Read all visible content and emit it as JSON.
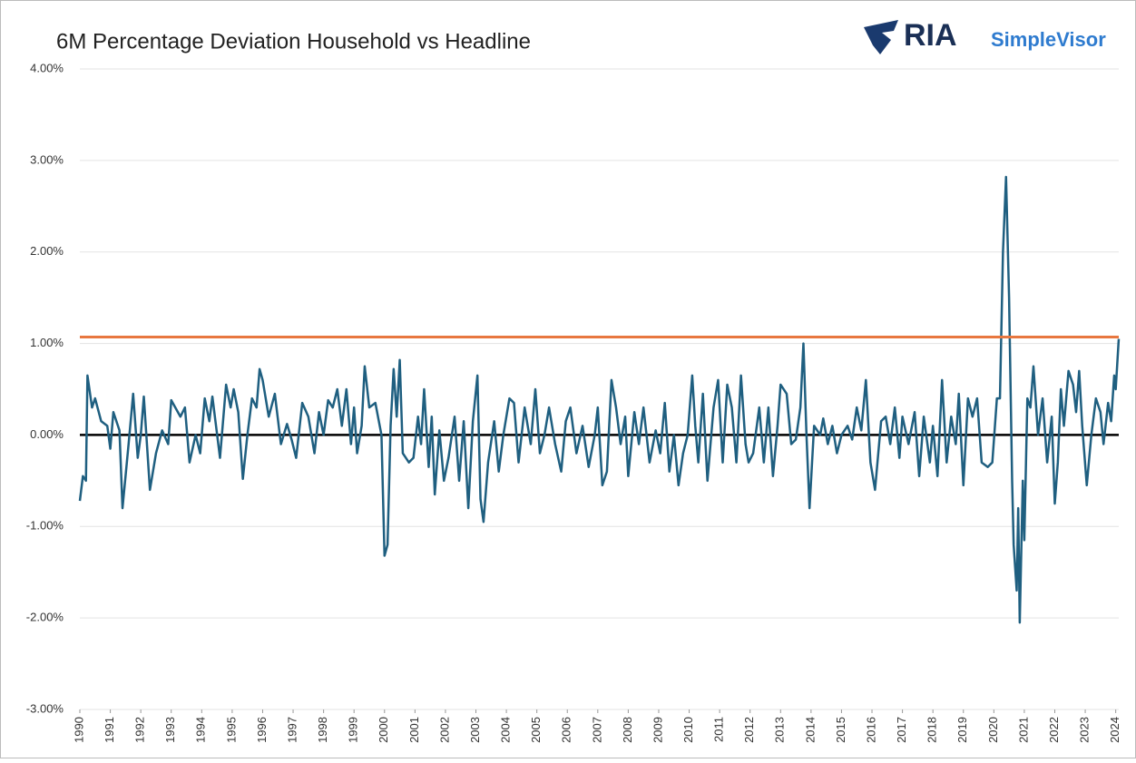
{
  "chart_data": {
    "type": "line",
    "title": "6M Percentage Deviation Household vs Headline",
    "brand": "RIA",
    "brand_sub": "SimpleVisor",
    "xlim": [
      1990,
      2024.1
    ],
    "xticks": [
      1990,
      1991,
      1992,
      1993,
      1994,
      1995,
      1996,
      1997,
      1998,
      1999,
      2000,
      2001,
      2002,
      2003,
      2004,
      2005,
      2006,
      2007,
      2008,
      2009,
      2010,
      2011,
      2012,
      2013,
      2014,
      2015,
      2016,
      2017,
      2018,
      2019,
      2020,
      2021,
      2022,
      2023,
      2024
    ],
    "ylim": [
      -3,
      4
    ],
    "yticks": [
      {
        "value": -3,
        "label": "-3.00%"
      },
      {
        "value": -2,
        "label": "-2.00%"
      },
      {
        "value": -1,
        "label": "-1.00%"
      },
      {
        "value": 0,
        "label": "0.00%"
      },
      {
        "value": 1,
        "label": "1.00%"
      },
      {
        "value": 2,
        "label": "2.00%"
      },
      {
        "value": 3,
        "label": "3.00%"
      },
      {
        "value": 4,
        "label": "4.00%"
      }
    ],
    "grid": true,
    "reference_line": {
      "value": 1.07,
      "color": "#e8773f"
    },
    "series": [
      {
        "color": "#1f5f80",
        "x": [
          1990.0,
          1990.1,
          1990.2,
          1990.25,
          1990.4,
          1990.5,
          1990.7,
          1990.9,
          1991.0,
          1991.1,
          1991.3,
          1991.4,
          1991.6,
          1991.75,
          1991.9,
          1992.0,
          1992.1,
          1992.3,
          1992.5,
          1992.7,
          1992.9,
          1993.0,
          1993.3,
          1993.45,
          1993.6,
          1993.8,
          1993.95,
          1994.1,
          1994.25,
          1994.35,
          1994.6,
          1994.8,
          1994.95,
          1995.05,
          1995.2,
          1995.35,
          1995.5,
          1995.65,
          1995.8,
          1995.9,
          1996.0,
          1996.2,
          1996.4,
          1996.6,
          1996.8,
          1996.95,
          1997.1,
          1997.3,
          1997.5,
          1997.7,
          1997.85,
          1998.0,
          1998.15,
          1998.3,
          1998.45,
          1998.6,
          1998.75,
          1998.9,
          1999.0,
          1999.1,
          1999.25,
          1999.35,
          1999.5,
          1999.7,
          1999.9,
          2000.0,
          2000.1,
          2000.2,
          2000.3,
          2000.4,
          2000.5,
          2000.6,
          2000.8,
          2000.95,
          2001.1,
          2001.2,
          2001.3,
          2001.45,
          2001.55,
          2001.65,
          2001.8,
          2001.95,
          2002.1,
          2002.3,
          2002.45,
          2002.6,
          2002.75,
          2002.9,
          2003.05,
          2003.15,
          2003.25,
          2003.4,
          2003.6,
          2003.75,
          2003.9,
          2004.1,
          2004.25,
          2004.4,
          2004.6,
          2004.8,
          2004.95,
          2005.1,
          2005.25,
          2005.4,
          2005.6,
          2005.8,
          2005.95,
          2006.1,
          2006.3,
          2006.5,
          2006.7,
          2006.9,
          2007.0,
          2007.15,
          2007.3,
          2007.45,
          2007.6,
          2007.75,
          2007.9,
          2008.0,
          2008.2,
          2008.35,
          2008.5,
          2008.7,
          2008.9,
          2009.05,
          2009.2,
          2009.35,
          2009.5,
          2009.65,
          2009.8,
          2009.95,
          2010.1,
          2010.2,
          2010.3,
          2010.45,
          2010.6,
          2010.8,
          2010.95,
          2011.1,
          2011.25,
          2011.4,
          2011.55,
          2011.7,
          2011.85,
          2011.95,
          2012.1,
          2012.3,
          2012.45,
          2012.6,
          2012.75,
          2012.9,
          2013.0,
          2013.2,
          2013.35,
          2013.5,
          2013.65,
          2013.75,
          2013.85,
          2013.95,
          2014.1,
          2014.3,
          2014.4,
          2014.55,
          2014.7,
          2014.85,
          2015.0,
          2015.2,
          2015.35,
          2015.5,
          2015.65,
          2015.8,
          2015.95,
          2016.1,
          2016.3,
          2016.45,
          2016.6,
          2016.75,
          2016.9,
          2017.0,
          2017.2,
          2017.4,
          2017.55,
          2017.7,
          2017.9,
          2018.0,
          2018.15,
          2018.3,
          2018.45,
          2018.6,
          2018.75,
          2018.85,
          2019.0,
          2019.15,
          2019.3,
          2019.45,
          2019.6,
          2019.8,
          2019.95,
          2020.1,
          2020.2,
          2020.3,
          2020.4,
          2020.5,
          2020.6,
          2020.65,
          2020.75,
          2020.8,
          2020.85,
          2020.95,
          2021.0,
          2021.1,
          2021.2,
          2021.3,
          2021.45,
          2021.6,
          2021.75,
          2021.9,
          2022.0,
          2022.1,
          2022.2,
          2022.3,
          2022.45,
          2022.6,
          2022.7,
          2022.8,
          2022.9,
          2023.05,
          2023.2,
          2023.35,
          2023.5,
          2023.6,
          2023.75,
          2023.85,
          2023.95,
          2024.0,
          2024.1
        ],
        "values": [
          -0.72,
          -0.45,
          -0.5,
          0.65,
          0.3,
          0.4,
          0.15,
          0.1,
          -0.15,
          0.25,
          0.05,
          -0.8,
          -0.1,
          0.45,
          -0.25,
          0.0,
          0.42,
          -0.6,
          -0.2,
          0.05,
          -0.1,
          0.38,
          0.2,
          0.3,
          -0.3,
          0.0,
          -0.2,
          0.4,
          0.15,
          0.42,
          -0.25,
          0.55,
          0.3,
          0.5,
          0.25,
          -0.48,
          0.0,
          0.4,
          0.3,
          0.72,
          0.6,
          0.2,
          0.45,
          -0.1,
          0.12,
          -0.05,
          -0.25,
          0.35,
          0.2,
          -0.2,
          0.25,
          0.0,
          0.38,
          0.3,
          0.5,
          0.1,
          0.5,
          -0.1,
          0.3,
          -0.2,
          0.1,
          0.75,
          0.3,
          0.35,
          0.0,
          -1.32,
          -1.2,
          0.1,
          0.72,
          0.2,
          0.82,
          -0.2,
          -0.3,
          -0.25,
          0.2,
          -0.1,
          0.5,
          -0.35,
          0.2,
          -0.65,
          0.05,
          -0.5,
          -0.25,
          0.2,
          -0.5,
          0.15,
          -0.8,
          0.15,
          0.65,
          -0.7,
          -0.95,
          -0.3,
          0.15,
          -0.4,
          0.0,
          0.4,
          0.35,
          -0.3,
          0.3,
          -0.1,
          0.5,
          -0.2,
          0.0,
          0.3,
          -0.1,
          -0.4,
          0.15,
          0.3,
          -0.2,
          0.1,
          -0.35,
          0.0,
          0.3,
          -0.55,
          -0.4,
          0.6,
          0.3,
          -0.1,
          0.2,
          -0.45,
          0.25,
          -0.1,
          0.3,
          -0.3,
          0.05,
          -0.2,
          0.35,
          -0.4,
          0.0,
          -0.55,
          -0.2,
          0.0,
          0.65,
          0.1,
          -0.3,
          0.45,
          -0.5,
          0.3,
          0.6,
          -0.3,
          0.55,
          0.3,
          -0.3,
          0.65,
          -0.1,
          -0.3,
          -0.2,
          0.3,
          -0.3,
          0.3,
          -0.45,
          0.1,
          0.55,
          0.45,
          -0.1,
          -0.05,
          0.3,
          1.0,
          0.0,
          -0.8,
          0.1,
          0.0,
          0.18,
          -0.1,
          0.1,
          -0.2,
          0.0,
          0.1,
          -0.05,
          0.3,
          0.05,
          0.6,
          -0.3,
          -0.6,
          0.15,
          0.2,
          -0.1,
          0.3,
          -0.25,
          0.2,
          -0.1,
          0.25,
          -0.45,
          0.2,
          -0.3,
          0.1,
          -0.45,
          0.6,
          -0.3,
          0.2,
          -0.1,
          0.45,
          -0.55,
          0.4,
          0.2,
          0.4,
          -0.3,
          -0.35,
          -0.3,
          0.4,
          0.4,
          2.0,
          2.82,
          1.5,
          -0.5,
          -1.2,
          -1.7,
          -0.8,
          -2.05,
          -0.5,
          -1.15,
          0.4,
          0.3,
          0.75,
          0.0,
          0.4,
          -0.3,
          0.2,
          -0.75,
          -0.3,
          0.5,
          0.1,
          0.7,
          0.55,
          0.25,
          0.7,
          0.1,
          -0.55,
          0.0,
          0.4,
          0.25,
          -0.1,
          0.35,
          0.15,
          0.65,
          0.5,
          1.05
        ]
      }
    ]
  }
}
